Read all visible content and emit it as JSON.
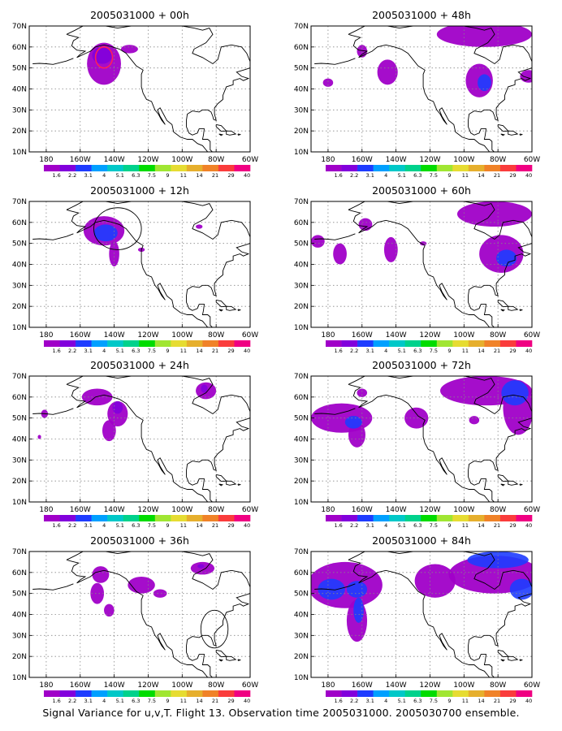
{
  "caption": "Signal Variance for u,v,T. Flight 13. Observation time 2005031000. 2005030700 ensemble.",
  "colors": {
    "plot_bg": "#ffffff",
    "grid": "#888888",
    "coast": "#000000",
    "colorbar": [
      "#a000c8",
      "#8200dc",
      "#1e3cff",
      "#00a0ff",
      "#00c8c8",
      "#00d28c",
      "#00dc00",
      "#a0e632",
      "#e6dc32",
      "#e6af2d",
      "#f08228",
      "#fa3c3c",
      "#f00082"
    ],
    "variance_low": "#a000c8",
    "variance_mid": "#8200dc",
    "variance_high": "#1e3cff",
    "contour_red": "#ff1e5a"
  },
  "chart_data": [
    {
      "type": "heatmap",
      "title": "2005031000 + 00h",
      "xlabel": "",
      "ylabel": "",
      "xticks": [
        "180",
        "160W",
        "140W",
        "120W",
        "100W",
        "80W",
        "60W"
      ],
      "yticks": [
        "10N",
        "20N",
        "30N",
        "40N",
        "50N",
        "60N",
        "70N"
      ],
      "xlim": [
        -190,
        -60
      ],
      "ylim": [
        10,
        70
      ],
      "colorbar_labels": [
        "1.6",
        "2.2",
        "3.1",
        "4",
        "5.1",
        "6.3",
        "7.5",
        "9",
        "11",
        "14",
        "21",
        "29",
        "40"
      ],
      "grid": true,
      "blobs": [
        {
          "lon": -146,
          "lat": 52,
          "rlon": 10,
          "rlat": 10,
          "level": 1
        },
        {
          "lon": -147,
          "lat": 56,
          "rlon": 6,
          "rlat": 4,
          "level": 2
        },
        {
          "lon": -131,
          "lat": 59,
          "rlon": 5,
          "rlat": 2,
          "level": 1
        }
      ],
      "red_contour": {
        "lon": -146,
        "lat": 55,
        "rlon": 5,
        "rlat": 5
      }
    },
    {
      "type": "heatmap",
      "title": "2005031000 + 48h",
      "xlabel": "",
      "ylabel": "",
      "xticks": [
        "180",
        "160W",
        "140W",
        "120W",
        "100W",
        "80W",
        "60W"
      ],
      "yticks": [
        "10N",
        "20N",
        "30N",
        "40N",
        "50N",
        "60N",
        "70N"
      ],
      "xlim": [
        -190,
        -60
      ],
      "ylim": [
        10,
        70
      ],
      "colorbar_labels": [
        "1.6",
        "2.2",
        "3.1",
        "4",
        "5.1",
        "6.3",
        "7.5",
        "9",
        "11",
        "14",
        "21",
        "29",
        "40"
      ],
      "grid": true,
      "blobs": [
        {
          "lon": -160,
          "lat": 58,
          "rlon": 3,
          "rlat": 3,
          "level": 1
        },
        {
          "lon": -145,
          "lat": 48,
          "rlon": 6,
          "rlat": 6,
          "level": 1
        },
        {
          "lon": -91,
          "lat": 44,
          "rlon": 8,
          "rlat": 8,
          "level": 1
        },
        {
          "lon": -88,
          "lat": 43,
          "rlon": 4,
          "rlat": 4,
          "level": 3
        },
        {
          "lon": -88,
          "lat": 66,
          "rlon": 28,
          "rlat": 6,
          "level": 1
        },
        {
          "lon": -62,
          "lat": 46,
          "rlon": 5,
          "rlat": 3,
          "level": 1
        },
        {
          "lon": -180,
          "lat": 43,
          "rlon": 3,
          "rlat": 2,
          "level": 1
        }
      ]
    },
    {
      "type": "heatmap",
      "title": "2005031000 + 12h",
      "xlabel": "",
      "ylabel": "",
      "xticks": [
        "180",
        "160W",
        "140W",
        "120W",
        "100W",
        "80W",
        "60W"
      ],
      "yticks": [
        "10N",
        "20N",
        "30N",
        "40N",
        "50N",
        "60N",
        "70N"
      ],
      "xlim": [
        -190,
        -60
      ],
      "ylim": [
        10,
        70
      ],
      "colorbar_labels": [
        "1.6",
        "2.2",
        "3.1",
        "4",
        "5.1",
        "6.3",
        "7.5",
        "9",
        "11",
        "14",
        "21",
        "29",
        "40"
      ],
      "grid": true,
      "blobs": [
        {
          "lon": -146,
          "lat": 56,
          "rlon": 12,
          "rlat": 7,
          "level": 1
        },
        {
          "lon": -145,
          "lat": 55,
          "rlon": 7,
          "rlat": 4,
          "level": 3
        },
        {
          "lon": -140,
          "lat": 45,
          "rlon": 3,
          "rlat": 6,
          "level": 1
        },
        {
          "lon": -124,
          "lat": 47,
          "rlon": 2,
          "rlat": 1,
          "level": 1
        },
        {
          "lon": -90,
          "lat": 58,
          "rlon": 2,
          "rlat": 1,
          "level": 1
        }
      ],
      "circle": {
        "lon": -138,
        "lat": 57,
        "rlon": 14,
        "rlat": 10
      }
    },
    {
      "type": "heatmap",
      "title": "2005031000 + 60h",
      "xlabel": "",
      "ylabel": "",
      "xticks": [
        "180",
        "160W",
        "140W",
        "120W",
        "100W",
        "80W",
        "60W"
      ],
      "yticks": [
        "10N",
        "20N",
        "30N",
        "40N",
        "50N",
        "60N",
        "70N"
      ],
      "xlim": [
        -190,
        -60
      ],
      "ylim": [
        10,
        70
      ],
      "colorbar_labels": [
        "1.6",
        "2.2",
        "3.1",
        "4",
        "5.1",
        "6.3",
        "7.5",
        "9",
        "11",
        "14",
        "21",
        "29",
        "40"
      ],
      "grid": true,
      "blobs": [
        {
          "lon": -186,
          "lat": 51,
          "rlon": 4,
          "rlat": 3,
          "level": 1
        },
        {
          "lon": -173,
          "lat": 45,
          "rlon": 4,
          "rlat": 5,
          "level": 1
        },
        {
          "lon": -158,
          "lat": 59,
          "rlon": 4,
          "rlat": 3,
          "level": 1
        },
        {
          "lon": -143,
          "lat": 47,
          "rlon": 4,
          "rlat": 6,
          "level": 1
        },
        {
          "lon": -124,
          "lat": 50,
          "rlon": 2,
          "rlat": 1,
          "level": 1
        },
        {
          "lon": -78,
          "lat": 45,
          "rlon": 13,
          "rlat": 9,
          "level": 1
        },
        {
          "lon": -75,
          "lat": 43,
          "rlon": 6,
          "rlat": 4,
          "level": 3
        },
        {
          "lon": -82,
          "lat": 64,
          "rlon": 22,
          "rlat": 6,
          "level": 1
        }
      ]
    },
    {
      "type": "heatmap",
      "title": "2005031000 + 24h",
      "xlabel": "",
      "ylabel": "",
      "xticks": [
        "180",
        "160W",
        "140W",
        "120W",
        "100W",
        "80W",
        "60W"
      ],
      "yticks": [
        "10N",
        "20N",
        "30N",
        "40N",
        "50N",
        "60N",
        "70N"
      ],
      "xlim": [
        -190,
        -60
      ],
      "ylim": [
        10,
        70
      ],
      "colorbar_labels": [
        "1.6",
        "2.2",
        "3.1",
        "4",
        "5.1",
        "6.3",
        "7.5",
        "9",
        "11",
        "14",
        "21",
        "29",
        "40"
      ],
      "grid": true,
      "blobs": [
        {
          "lon": -150,
          "lat": 60,
          "rlon": 9,
          "rlat": 4,
          "level": 1
        },
        {
          "lon": -138,
          "lat": 52,
          "rlon": 6,
          "rlat": 6,
          "level": 1
        },
        {
          "lon": -143,
          "lat": 44,
          "rlon": 4,
          "rlat": 5,
          "level": 1
        },
        {
          "lon": -138,
          "lat": 55,
          "rlon": 3,
          "rlat": 3,
          "level": 2
        },
        {
          "lon": -181,
          "lat": 52,
          "rlon": 2,
          "rlat": 2,
          "level": 1
        },
        {
          "lon": -184,
          "lat": 41,
          "rlon": 1,
          "rlat": 1,
          "level": 1
        },
        {
          "lon": -86,
          "lat": 63,
          "rlon": 6,
          "rlat": 4,
          "level": 1
        },
        {
          "lon": -87,
          "lat": 64,
          "rlon": 2,
          "rlat": 2,
          "level": 2
        }
      ]
    },
    {
      "type": "heatmap",
      "title": "2005031000 + 72h",
      "xlabel": "",
      "ylabel": "",
      "xticks": [
        "180",
        "160W",
        "140W",
        "120W",
        "100W",
        "80W",
        "60W"
      ],
      "yticks": [
        "10N",
        "20N",
        "30N",
        "40N",
        "50N",
        "60N",
        "70N"
      ],
      "xlim": [
        -190,
        -60
      ],
      "ylim": [
        10,
        70
      ],
      "colorbar_labels": [
        "1.6",
        "2.2",
        "3.1",
        "4",
        "5.1",
        "6.3",
        "7.5",
        "9",
        "11",
        "14",
        "21",
        "29",
        "40"
      ],
      "grid": true,
      "blobs": [
        {
          "lon": -172,
          "lat": 50,
          "rlon": 18,
          "rlat": 7,
          "level": 1
        },
        {
          "lon": -163,
          "lat": 42,
          "rlon": 5,
          "rlat": 6,
          "level": 1
        },
        {
          "lon": -165,
          "lat": 48,
          "rlon": 5,
          "rlat": 3,
          "level": 3
        },
        {
          "lon": -128,
          "lat": 50,
          "rlon": 7,
          "rlat": 5,
          "level": 1
        },
        {
          "lon": -160,
          "lat": 62,
          "rlon": 3,
          "rlat": 2,
          "level": 1
        },
        {
          "lon": -87,
          "lat": 63,
          "rlon": 27,
          "rlat": 7,
          "level": 1
        },
        {
          "lon": -68,
          "lat": 55,
          "rlon": 9,
          "rlat": 13,
          "level": 1
        },
        {
          "lon": -70,
          "lat": 62,
          "rlon": 8,
          "rlat": 6,
          "level": 3
        },
        {
          "lon": -94,
          "lat": 49,
          "rlon": 3,
          "rlat": 2,
          "level": 1
        }
      ]
    },
    {
      "type": "heatmap",
      "title": "2005031000 + 36h",
      "xlabel": "",
      "ylabel": "",
      "xticks": [
        "180",
        "160W",
        "140W",
        "120W",
        "100W",
        "80W",
        "60W"
      ],
      "yticks": [
        "10N",
        "20N",
        "30N",
        "40N",
        "50N",
        "60N",
        "70N"
      ],
      "xlim": [
        -190,
        -60
      ],
      "ylim": [
        10,
        70
      ],
      "colorbar_labels": [
        "1.6",
        "2.2",
        "3.1",
        "4",
        "5.1",
        "6.3",
        "7.5",
        "9",
        "11",
        "14",
        "21",
        "29",
        "40"
      ],
      "grid": true,
      "blobs": [
        {
          "lon": -148,
          "lat": 59,
          "rlon": 5,
          "rlat": 4,
          "level": 1
        },
        {
          "lon": -150,
          "lat": 50,
          "rlon": 4,
          "rlat": 5,
          "level": 1
        },
        {
          "lon": -143,
          "lat": 42,
          "rlon": 3,
          "rlat": 3,
          "level": 1
        },
        {
          "lon": -124,
          "lat": 54,
          "rlon": 8,
          "rlat": 4,
          "level": 1
        },
        {
          "lon": -113,
          "lat": 50,
          "rlon": 4,
          "rlat": 2,
          "level": 1
        },
        {
          "lon": -88,
          "lat": 62,
          "rlon": 7,
          "rlat": 3,
          "level": 1
        },
        {
          "lon": -89,
          "lat": 63,
          "rlon": 2,
          "rlat": 1,
          "level": 2
        }
      ],
      "circle": {
        "lon": -81,
        "lat": 33,
        "rlon": 8,
        "rlat": 9
      }
    },
    {
      "type": "heatmap",
      "title": "2005031000 + 84h",
      "xlabel": "",
      "ylabel": "",
      "xticks": [
        "180",
        "160W",
        "140W",
        "120W",
        "100W",
        "80W",
        "60W"
      ],
      "yticks": [
        "10N",
        "20N",
        "30N",
        "40N",
        "50N",
        "60N",
        "70N"
      ],
      "xlim": [
        -190,
        -60
      ],
      "ylim": [
        10,
        70
      ],
      "colorbar_labels": [
        "1.6",
        "2.2",
        "3.1",
        "4",
        "5.1",
        "6.3",
        "7.5",
        "9",
        "11",
        "14",
        "21",
        "29",
        "40"
      ],
      "grid": true,
      "blobs": [
        {
          "lon": -170,
          "lat": 54,
          "rlon": 22,
          "rlat": 11,
          "level": 1
        },
        {
          "lon": -178,
          "lat": 52,
          "rlon": 8,
          "rlat": 5,
          "level": 3
        },
        {
          "lon": -163,
          "lat": 52,
          "rlon": 6,
          "rlat": 4,
          "level": 3
        },
        {
          "lon": -163,
          "lat": 37,
          "rlon": 6,
          "rlat": 10,
          "level": 1
        },
        {
          "lon": -162,
          "lat": 42,
          "rlon": 3,
          "rlat": 6,
          "level": 3
        },
        {
          "lon": -117,
          "lat": 56,
          "rlon": 12,
          "rlat": 8,
          "level": 1
        },
        {
          "lon": -82,
          "lat": 59,
          "rlon": 27,
          "rlat": 9,
          "level": 1
        },
        {
          "lon": -80,
          "lat": 66,
          "rlon": 18,
          "rlat": 4,
          "level": 3
        },
        {
          "lon": -66,
          "lat": 52,
          "rlon": 7,
          "rlat": 5,
          "level": 3
        }
      ]
    }
  ]
}
